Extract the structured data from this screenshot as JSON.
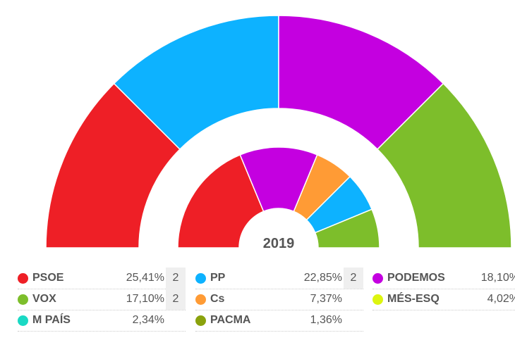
{
  "chart_data": {
    "type": "parliament-semicircle",
    "center_label": "2019",
    "outer_ring": [
      {
        "party": "PSOE",
        "seats": 2,
        "color": "#ee1f26"
      },
      {
        "party": "PP",
        "seats": 2,
        "color": "#0db2ff"
      },
      {
        "party": "PODEMOS",
        "seats": 2,
        "color": "#c400e0"
      },
      {
        "party": "VOX",
        "seats": 2,
        "color": "#7dbe2b"
      }
    ],
    "inner_ring": [
      {
        "party": "PSOE",
        "seats": 3,
        "color": "#ee1f26"
      },
      {
        "party": "PODEMOS",
        "seats": 2,
        "color": "#c400e0"
      },
      {
        "party": "Cs",
        "seats": 1,
        "color": "#ff9b35"
      },
      {
        "party": "PP",
        "seats": 1,
        "color": "#0db2ff"
      },
      {
        "party": "VOX",
        "seats": 1,
        "color": "#7dbe2b"
      }
    ],
    "legend": [
      {
        "party": "PSOE",
        "pct": "25,41%",
        "seats": "2",
        "color": "#ee1f26"
      },
      {
        "party": "PP",
        "pct": "22,85%",
        "seats": "2",
        "color": "#0db2ff"
      },
      {
        "party": "PODEMOS",
        "pct": "18,10%",
        "seats": "",
        "color": "#c400e0"
      },
      {
        "party": "VOX",
        "pct": "17,10%",
        "seats": "2",
        "color": "#7dbe2b"
      },
      {
        "party": "Cs",
        "pct": "7,37%",
        "seats": "",
        "color": "#ff9b35"
      },
      {
        "party": "MÉS-ESQ",
        "pct": "4,02%",
        "seats": "",
        "color": "#ddf50f"
      },
      {
        "party": "M PAÍS",
        "pct": "2,34%",
        "seats": "",
        "color": "#1ad9c4"
      },
      {
        "party": "PACMA",
        "pct": "1,36%",
        "seats": "",
        "color": "#8aa20d"
      }
    ]
  }
}
